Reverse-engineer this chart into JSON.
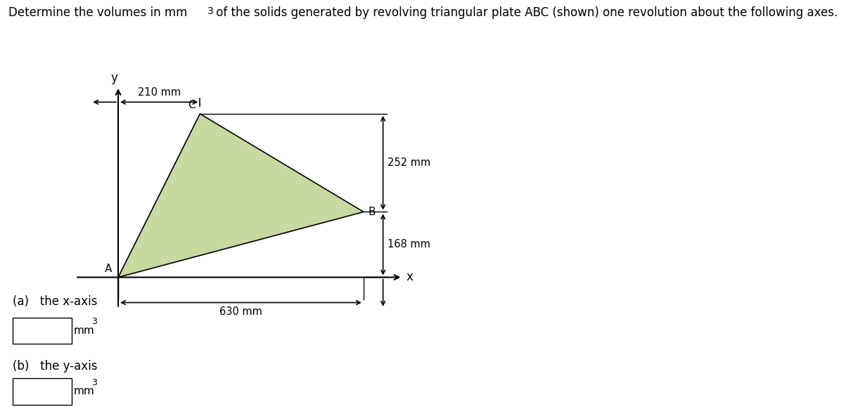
{
  "title": "Determine the volumes in mm",
  "title_super": "3",
  "title_rest": " of the solids generated by revolving triangular plate ABC (shown) one revolution about the following axes.",
  "title_fontsize": 12,
  "triangle_color": "#c8d9a0",
  "label_A": "A",
  "label_B": "B",
  "label_C": "C",
  "label_x": "x",
  "label_y": "y",
  "dim_210": "210 mm",
  "dim_252": "252 mm",
  "dim_168": "168 mm",
  "dim_630": "630 mm",
  "answer_a_label": "(a)   the x-axis",
  "answer_b_label": "(b)   the y-axis",
  "units": "mm",
  "units_super": "3",
  "A": [
    0,
    0
  ],
  "C": [
    210,
    420
  ],
  "B": [
    630,
    168
  ]
}
